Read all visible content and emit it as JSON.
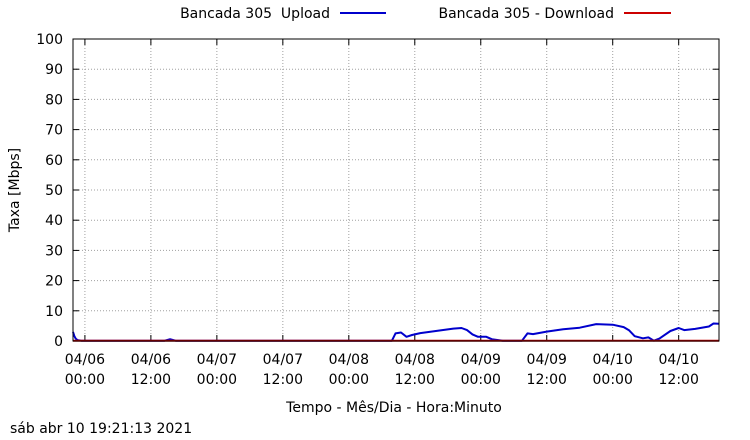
{
  "chart_data": {
    "type": "line",
    "xlabel": "Tempo - Mês/Dia - Hora:Minuto",
    "ylabel": "Taxa [Mbps]",
    "ylim": [
      0,
      100
    ],
    "yticks": [
      0,
      10,
      20,
      30,
      40,
      50,
      60,
      70,
      80,
      90,
      100
    ],
    "xlim": [
      "2021-04-05 21:50",
      "2021-04-10 19:20"
    ],
    "xticks": [
      {
        "date": "04/06",
        "time": "00:00",
        "at": "2021-04-06 00:00"
      },
      {
        "date": "04/06",
        "time": "12:00",
        "at": "2021-04-06 12:00"
      },
      {
        "date": "04/07",
        "time": "00:00",
        "at": "2021-04-07 00:00"
      },
      {
        "date": "04/07",
        "time": "12:00",
        "at": "2021-04-07 12:00"
      },
      {
        "date": "04/08",
        "time": "00:00",
        "at": "2021-04-08 00:00"
      },
      {
        "date": "04/08",
        "time": "12:00",
        "at": "2021-04-08 12:00"
      },
      {
        "date": "04/09",
        "time": "00:00",
        "at": "2021-04-09 00:00"
      },
      {
        "date": "04/09",
        "time": "12:00",
        "at": "2021-04-09 12:00"
      },
      {
        "date": "04/10",
        "time": "00:00",
        "at": "2021-04-10 00:00"
      },
      {
        "date": "04/10",
        "time": "12:00",
        "at": "2021-04-10 12:00"
      }
    ],
    "grid": true,
    "legend_position": "top",
    "series": [
      {
        "name": "Bancada 305  Upload",
        "color": "#0000cc",
        "points": [
          [
            "2021-04-05 21:50",
            3.0
          ],
          [
            "2021-04-05 22:05",
            1.6
          ],
          [
            "2021-04-05 22:20",
            0.8
          ],
          [
            "2021-04-05 22:40",
            0.3
          ],
          [
            "2021-04-05 23:20",
            0.1
          ],
          [
            "2021-04-06 06:00",
            0.1
          ],
          [
            "2021-04-06 14:30",
            0.1
          ],
          [
            "2021-04-06 15:30",
            0.6
          ],
          [
            "2021-04-06 16:30",
            0.1
          ],
          [
            "2021-04-07 12:00",
            0.1
          ],
          [
            "2021-04-08 07:50",
            0.1
          ],
          [
            "2021-04-08 08:30",
            2.5
          ],
          [
            "2021-04-08 09:30",
            2.8
          ],
          [
            "2021-04-08 10:30",
            1.4
          ],
          [
            "2021-04-08 11:30",
            2.0
          ],
          [
            "2021-04-08 13:00",
            2.6
          ],
          [
            "2021-04-08 15:00",
            3.1
          ],
          [
            "2021-04-08 17:00",
            3.6
          ],
          [
            "2021-04-08 19:00",
            4.1
          ],
          [
            "2021-04-08 20:30",
            4.3
          ],
          [
            "2021-04-08 21:30",
            3.6
          ],
          [
            "2021-04-08 22:30",
            2.2
          ],
          [
            "2021-04-08 23:30",
            1.4
          ],
          [
            "2021-04-09 01:00",
            1.4
          ],
          [
            "2021-04-09 02:00",
            0.6
          ],
          [
            "2021-04-09 04:00",
            0.1
          ],
          [
            "2021-04-09 07:30",
            0.1
          ],
          [
            "2021-04-09 08:30",
            2.5
          ],
          [
            "2021-04-09 09:30",
            2.3
          ],
          [
            "2021-04-09 12:00",
            3.1
          ],
          [
            "2021-04-09 15:00",
            3.9
          ],
          [
            "2021-04-09 18:00",
            4.4
          ],
          [
            "2021-04-09 21:00",
            5.6
          ],
          [
            "2021-04-10 00:00",
            5.4
          ],
          [
            "2021-04-10 02:00",
            4.6
          ],
          [
            "2021-04-10 03:00",
            3.5
          ],
          [
            "2021-04-10 04:00",
            1.6
          ],
          [
            "2021-04-10 05:30",
            0.9
          ],
          [
            "2021-04-10 06:30",
            1.2
          ],
          [
            "2021-04-10 07:30",
            0.1
          ],
          [
            "2021-04-10 08:30",
            0.8
          ],
          [
            "2021-04-10 10:30",
            3.3
          ],
          [
            "2021-04-10 12:00",
            4.3
          ],
          [
            "2021-04-10 13:00",
            3.6
          ],
          [
            "2021-04-10 15:00",
            4.0
          ],
          [
            "2021-04-10 17:30",
            4.8
          ],
          [
            "2021-04-10 18:20",
            5.8
          ],
          [
            "2021-04-10 19:20",
            5.7
          ]
        ]
      },
      {
        "name": "Bancada 305 - Download",
        "color": "#cc0000",
        "points": [
          [
            "2021-04-05 21:50",
            0.1
          ],
          [
            "2021-04-10 19:20",
            0.1
          ]
        ]
      }
    ]
  },
  "footer": {
    "timestamp": "sáb abr 10 19:21:13 2021"
  }
}
